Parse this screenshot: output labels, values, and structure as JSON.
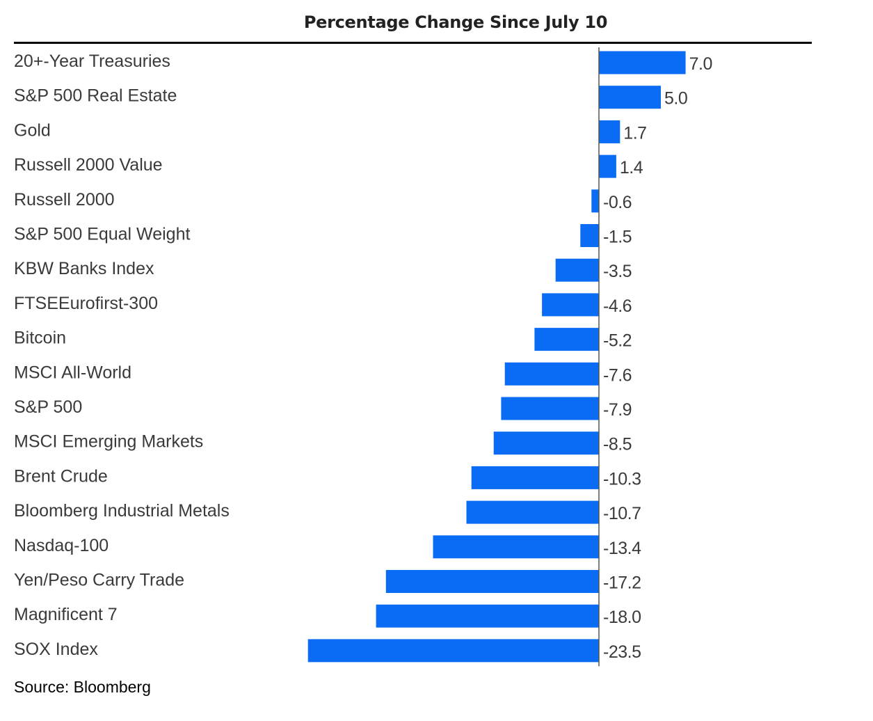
{
  "chart_data": {
    "type": "bar",
    "orientation": "horizontal",
    "title": "Percentage Change Since July 10",
    "categories": [
      "20+-Year Treasuries",
      "S&P 500 Real Estate",
      "Gold",
      "Russell 2000 Value",
      "Russell 2000",
      "S&P 500 Equal Weight",
      "KBW Banks Index",
      "FTSEEurofirst-300",
      "Bitcoin",
      "MSCI All-World",
      "S&P 500",
      "MSCI Emerging Markets",
      "Brent Crude",
      "Bloomberg Industrial Metals",
      "Nasdaq-100",
      "Yen/Peso Carry Trade",
      "Magnificent 7",
      "SOX Index"
    ],
    "values": [
      7.0,
      5.0,
      1.7,
      1.4,
      -0.6,
      -1.5,
      -3.5,
      -4.6,
      -5.2,
      -7.6,
      -7.9,
      -8.5,
      -10.3,
      -10.7,
      -13.4,
      -17.2,
      -18.0,
      -23.5
    ],
    "value_labels": [
      "7.0",
      "5.0",
      "1.7",
      "1.4",
      "-0.6",
      "-1.5",
      "-3.5",
      "-4.6",
      "-5.2",
      "-7.6",
      "-7.9",
      "-8.5",
      "-10.3",
      "-10.7",
      "-13.4",
      "-17.2",
      "-18.0",
      "-23.5"
    ],
    "xlim": [
      -23.5,
      7.0
    ],
    "grid": false,
    "bar_color": "#0a6cf5",
    "source": "Source: Bloomberg"
  }
}
